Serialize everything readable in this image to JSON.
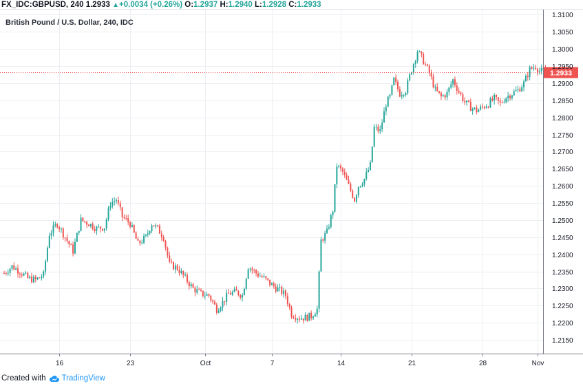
{
  "header": {
    "symbol": "FX_IDC:GBPUSD, 240",
    "last": "1.2933",
    "change": "+0.0034 (+0.26%)",
    "o_label": "O:",
    "o_value": "1.2937",
    "h_label": "H:",
    "h_value": "1.2940",
    "l_label": "L:",
    "l_value": "1.2928",
    "c_label": "C:",
    "c_value": "1.2933"
  },
  "footer": {
    "created_with": "Created with",
    "brand": "TradingView"
  },
  "colors": {
    "up": "#26a69a",
    "down": "#ef5350",
    "price_line": "#ef5350",
    "price_label_bg": "#ef5350"
  },
  "chart_data": {
    "type": "candlestick",
    "title": "British Pound / U.S. Dollar, 240, IDC",
    "ylim": [
      1.211,
      1.3115
    ],
    "y_ticks": [
      1.215,
      1.22,
      1.225,
      1.23,
      1.235,
      1.24,
      1.245,
      1.25,
      1.255,
      1.26,
      1.265,
      1.27,
      1.275,
      1.28,
      1.285,
      1.29,
      1.295,
      1.3,
      1.305,
      1.31
    ],
    "y_tick_labels": [
      "1.2150",
      "1.2200",
      "1.2250",
      "1.2300",
      "1.2350",
      "1.2400",
      "1.2450",
      "1.2500",
      "1.2550",
      "1.2600",
      "1.2650",
      "1.2700",
      "1.2750",
      "1.2800",
      "1.2850",
      "1.2900",
      "1.2950",
      "1.3000",
      "1.3050",
      "1.3100"
    ],
    "x_ticks": [
      {
        "label": "16",
        "index": 28
      },
      {
        "label": "23",
        "index": 64
      },
      {
        "label": "Oct",
        "index": 102
      },
      {
        "label": "7",
        "index": 136
      },
      {
        "label": "14",
        "index": 171
      },
      {
        "label": "21",
        "index": 207
      },
      {
        "label": "28",
        "index": 243
      },
      {
        "label": "Nov",
        "index": 271
      }
    ],
    "x_count": 276,
    "current_price": 1.2933,
    "current_price_label": "1.2933",
    "anchors": [
      [
        0,
        1.2345
      ],
      [
        4,
        1.2365
      ],
      [
        8,
        1.235
      ],
      [
        12,
        1.233
      ],
      [
        16,
        1.2325
      ],
      [
        20,
        1.234
      ],
      [
        23,
        1.246
      ],
      [
        27,
        1.249
      ],
      [
        31,
        1.245
      ],
      [
        35,
        1.241
      ],
      [
        39,
        1.25
      ],
      [
        43,
        1.249
      ],
      [
        47,
        1.2475
      ],
      [
        51,
        1.248
      ],
      [
        54,
        1.255
      ],
      [
        57,
        1.256
      ],
      [
        60,
        1.251
      ],
      [
        64,
        1.249
      ],
      [
        68,
        1.243
      ],
      [
        72,
        1.245
      ],
      [
        75,
        1.249
      ],
      [
        78,
        1.2475
      ],
      [
        81,
        1.245
      ],
      [
        84,
        1.237
      ],
      [
        88,
        1.236
      ],
      [
        92,
        1.233
      ],
      [
        96,
        1.23
      ],
      [
        100,
        1.2285
      ],
      [
        104,
        1.228
      ],
      [
        108,
        1.224
      ],
      [
        111,
        1.226
      ],
      [
        114,
        1.2285
      ],
      [
        118,
        1.229
      ],
      [
        121,
        1.228
      ],
      [
        124,
        1.2365
      ],
      [
        128,
        1.2345
      ],
      [
        132,
        1.233
      ],
      [
        136,
        1.231
      ],
      [
        140,
        1.2295
      ],
      [
        143,
        1.228
      ],
      [
        146,
        1.2225
      ],
      [
        150,
        1.2215
      ],
      [
        153,
        1.2215
      ],
      [
        156,
        1.222
      ],
      [
        159,
        1.224
      ],
      [
        161,
        1.244
      ],
      [
        164,
        1.2465
      ],
      [
        167,
        1.253
      ],
      [
        169,
        1.266
      ],
      [
        172,
        1.264
      ],
      [
        175,
        1.26
      ],
      [
        178,
        1.256
      ],
      [
        180,
        1.26
      ],
      [
        183,
        1.262
      ],
      [
        186,
        1.266
      ],
      [
        188,
        1.277
      ],
      [
        191,
        1.276
      ],
      [
        194,
        1.284
      ],
      [
        196,
        1.286
      ],
      [
        198,
        1.291
      ],
      [
        201,
        1.287
      ],
      [
        204,
        1.288
      ],
      [
        207,
        1.294
      ],
      [
        210,
        1.2995
      ],
      [
        213,
        1.2965
      ],
      [
        216,
        1.293
      ],
      [
        219,
        1.288
      ],
      [
        222,
        1.286
      ],
      [
        225,
        1.287
      ],
      [
        228,
        1.291
      ],
      [
        231,
        1.2875
      ],
      [
        234,
        1.2845
      ],
      [
        237,
        1.283
      ],
      [
        240,
        1.282
      ],
      [
        243,
        1.283
      ],
      [
        246,
        1.284
      ],
      [
        249,
        1.2855
      ],
      [
        252,
        1.284
      ],
      [
        255,
        1.286
      ],
      [
        258,
        1.287
      ],
      [
        261,
        1.288
      ],
      [
        264,
        1.29
      ],
      [
        267,
        1.294
      ],
      [
        270,
        1.295
      ],
      [
        272,
        1.2936
      ],
      [
        275,
        1.2933
      ]
    ]
  }
}
